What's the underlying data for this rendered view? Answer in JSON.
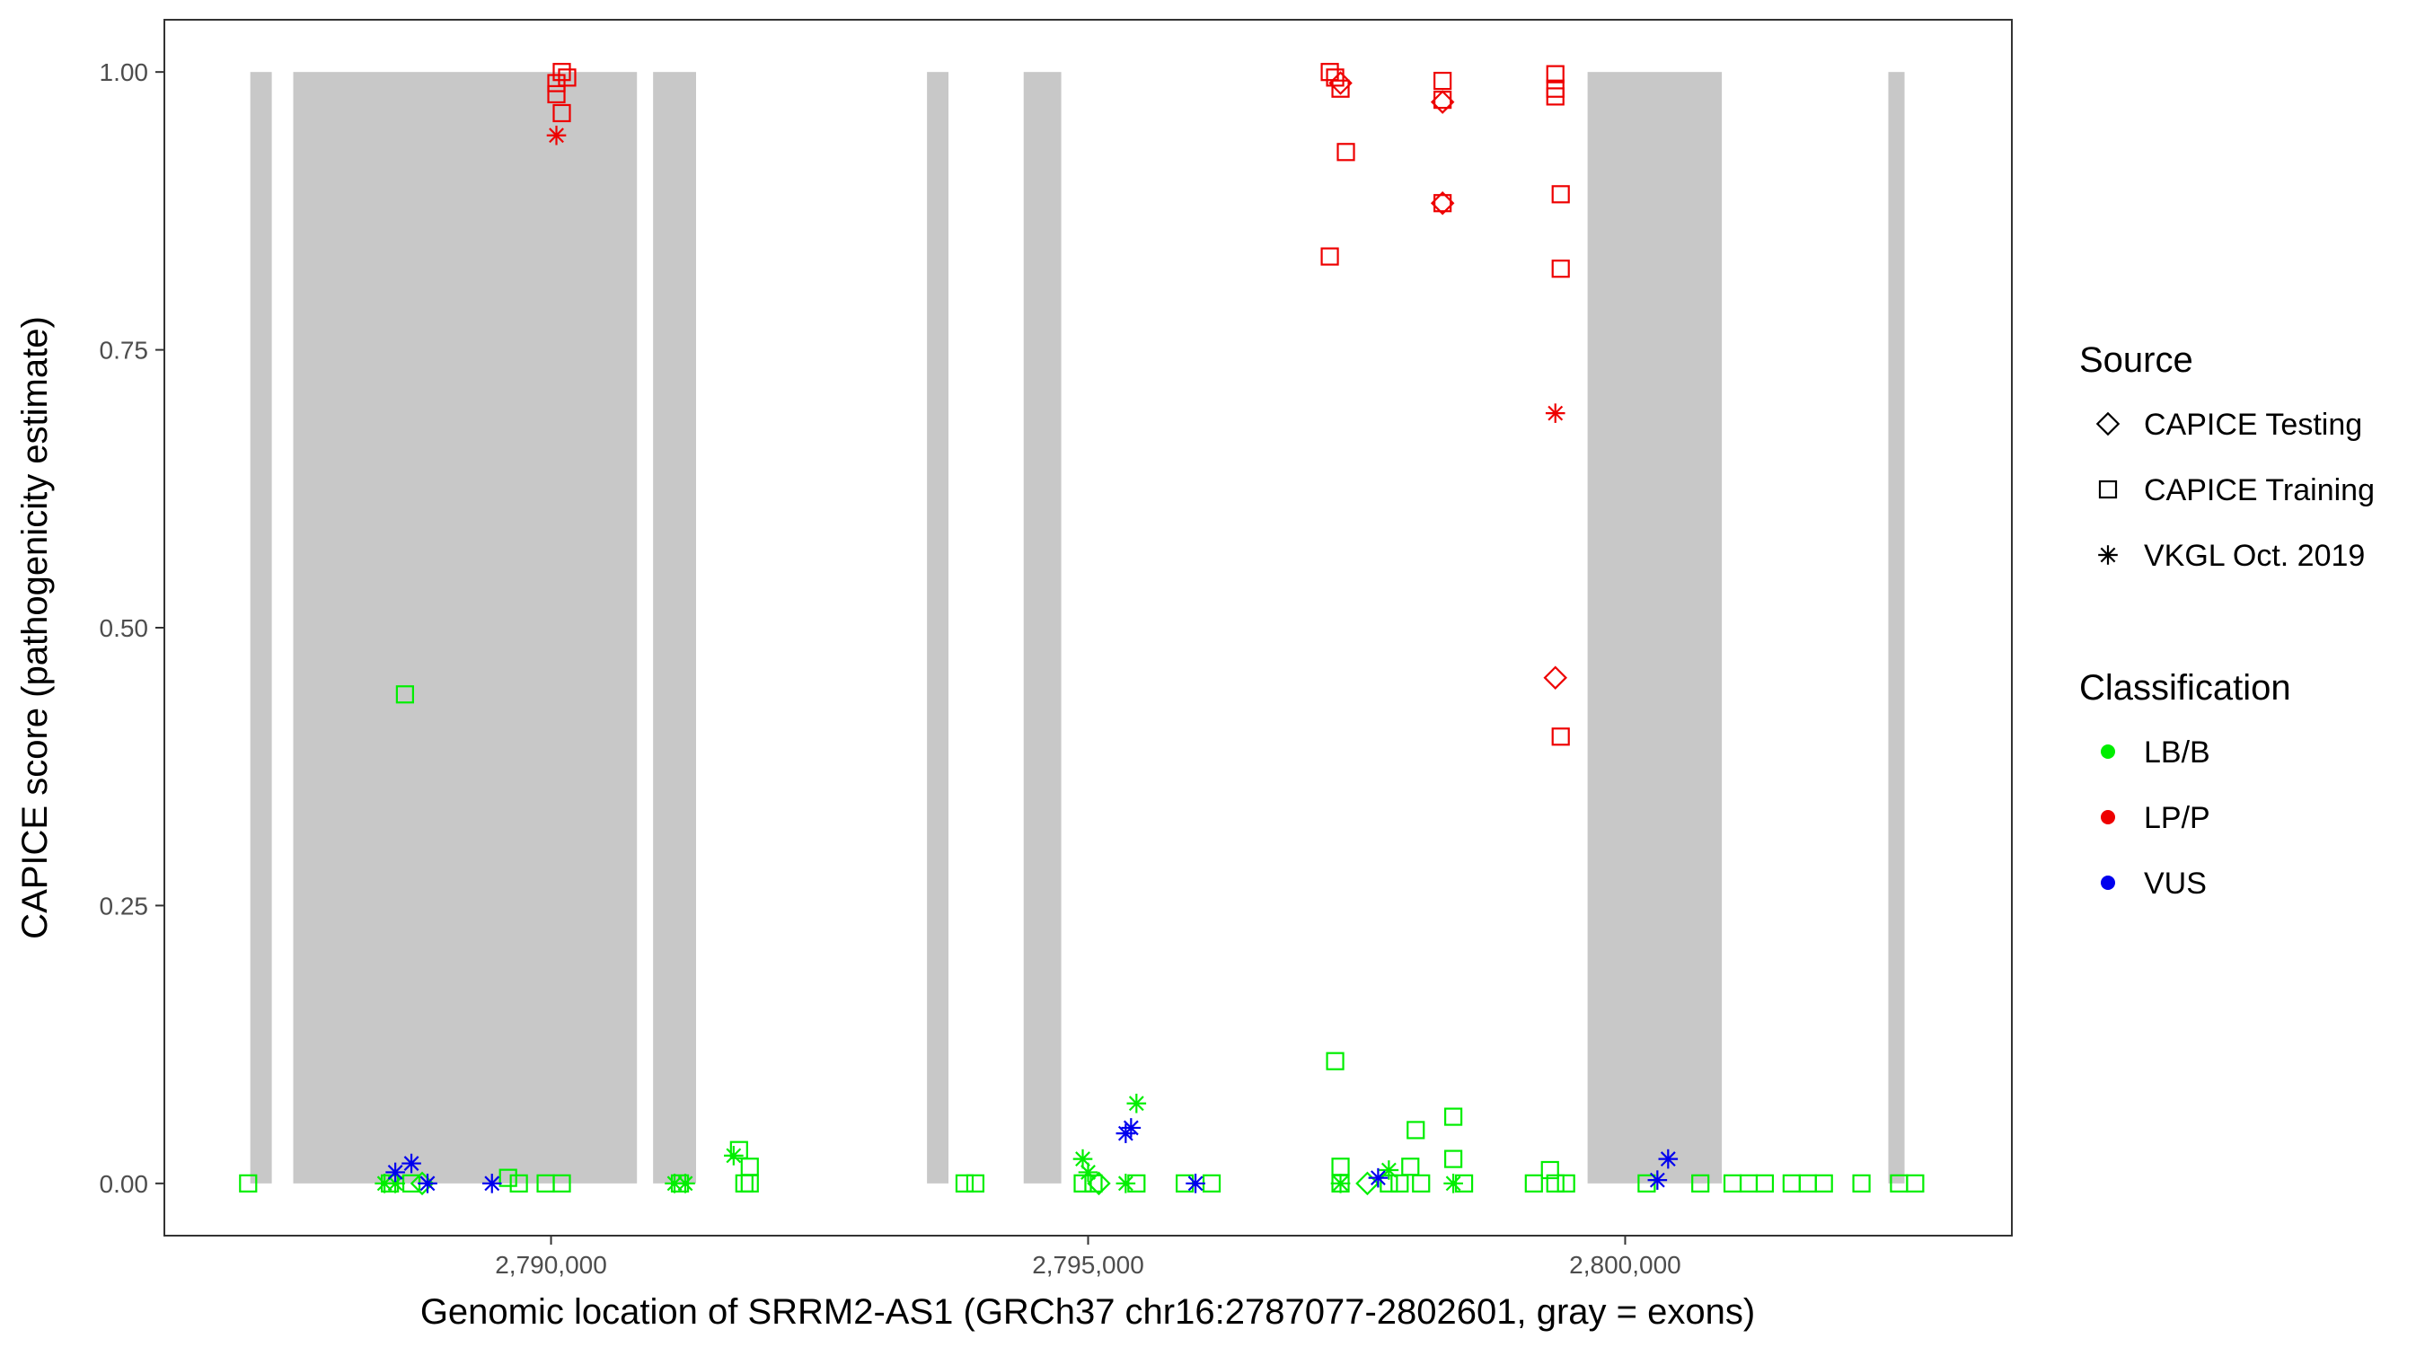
{
  "chart_data": {
    "type": "scatter",
    "xlabel": "Genomic location of SRRM2-AS1 (GRCh37 chr16:2787077-2802601, gray = exons)",
    "ylabel": "CAPICE score (pathogenicity estimate)",
    "xlim": [
      2786400,
      2803600
    ],
    "ylim": [
      -0.047,
      1.047
    ],
    "x_ticks": [
      2790000,
      2795000,
      2800000
    ],
    "x_tick_labels": [
      "2,790,000",
      "2,795,000",
      "2,800,000"
    ],
    "y_ticks": [
      0,
      0.25,
      0.5,
      0.75,
      1.0
    ],
    "y_tick_labels": [
      "0.00",
      "0.25",
      "0.50",
      "0.75",
      "1.00"
    ],
    "grid": false,
    "exons": [
      [
        2787200,
        2787400
      ],
      [
        2787600,
        2790800
      ],
      [
        2790950,
        2791350
      ],
      [
        2793500,
        2793700
      ],
      [
        2794400,
        2794750
      ],
      [
        2799650,
        2800900
      ],
      [
        2802450,
        2802601
      ]
    ],
    "legends": [
      {
        "title": "Source",
        "placement": "right",
        "entries": [
          {
            "label": "CAPICE Testing",
            "shape": "diamond"
          },
          {
            "label": "CAPICE Training",
            "shape": "square"
          },
          {
            "label": "VKGL Oct. 2019",
            "shape": "asterisk"
          }
        ]
      },
      {
        "title": "Classification",
        "placement": "right",
        "entries": [
          {
            "label": "LB/B",
            "color": "#00ee00"
          },
          {
            "label": "LP/P",
            "color": "#ee0000"
          },
          {
            "label": "VUS",
            "color": "#0000ee"
          }
        ]
      }
    ],
    "colors": {
      "LB/B": "#00ee00",
      "LP/P": "#ee0000",
      "VUS": "#0000ee",
      "exon": "#c8c8c8"
    },
    "series": [
      {
        "name": "CAPICE Training",
        "shape": "square",
        "points": [
          [
            2787180,
            0.0,
            "LB/B"
          ],
          [
            2788640,
            0.44,
            "LB/B"
          ],
          [
            2788500,
            0.0,
            "LB/B"
          ],
          [
            2788700,
            0.0,
            "LB/B"
          ],
          [
            2789600,
            0.005,
            "LB/B"
          ],
          [
            2789700,
            0.0,
            "LB/B"
          ],
          [
            2789950,
            0.0,
            "LB/B"
          ],
          [
            2790100,
            0.0,
            "LB/B"
          ],
          [
            2791200,
            0.0,
            "LB/B"
          ],
          [
            2791750,
            0.03,
            "LB/B"
          ],
          [
            2791850,
            0.015,
            "LB/B"
          ],
          [
            2791800,
            0.0,
            "LB/B"
          ],
          [
            2791850,
            0.0,
            "LB/B"
          ],
          [
            2793850,
            0.0,
            "LB/B"
          ],
          [
            2793950,
            0.0,
            "LB/B"
          ],
          [
            2794950,
            0.0,
            "LB/B"
          ],
          [
            2795050,
            0.0,
            "LB/B"
          ],
          [
            2795450,
            0.0,
            "LB/B"
          ],
          [
            2795900,
            0.0,
            "LB/B"
          ],
          [
            2796150,
            0.0,
            "LB/B"
          ],
          [
            2797300,
            0.11,
            "LB/B"
          ],
          [
            2797350,
            0.015,
            "LB/B"
          ],
          [
            2797350,
            0.0,
            "LB/B"
          ],
          [
            2797800,
            0.0,
            "LB/B"
          ],
          [
            2797900,
            0.0,
            "LB/B"
          ],
          [
            2798050,
            0.048,
            "LB/B"
          ],
          [
            2798000,
            0.015,
            "LB/B"
          ],
          [
            2798100,
            0.0,
            "LB/B"
          ],
          [
            2798400,
            0.06,
            "LB/B"
          ],
          [
            2798400,
            0.022,
            "LB/B"
          ],
          [
            2798500,
            0.0,
            "LB/B"
          ],
          [
            2799150,
            0.0,
            "LB/B"
          ],
          [
            2799300,
            0.012,
            "LB/B"
          ],
          [
            2799350,
            0.0,
            "LB/B"
          ],
          [
            2799450,
            0.0,
            "LB/B"
          ],
          [
            2800200,
            0.0,
            "LB/B"
          ],
          [
            2800700,
            0.0,
            "LB/B"
          ],
          [
            2801000,
            0.0,
            "LB/B"
          ],
          [
            2801150,
            0.0,
            "LB/B"
          ],
          [
            2801300,
            0.0,
            "LB/B"
          ],
          [
            2801550,
            0.0,
            "LB/B"
          ],
          [
            2801700,
            0.0,
            "LB/B"
          ],
          [
            2801850,
            0.0,
            "LB/B"
          ],
          [
            2802200,
            0.0,
            "LB/B"
          ],
          [
            2802550,
            0.0,
            "LB/B"
          ],
          [
            2802700,
            0.0,
            "LB/B"
          ],
          [
            2790050,
            0.99,
            "LP/P"
          ],
          [
            2790100,
            1.0,
            "LP/P"
          ],
          [
            2790150,
            0.995,
            "LP/P"
          ],
          [
            2790050,
            0.98,
            "LP/P"
          ],
          [
            2790100,
            0.963,
            "LP/P"
          ],
          [
            2797250,
            1.0,
            "LP/P"
          ],
          [
            2797300,
            0.995,
            "LP/P"
          ],
          [
            2797350,
            0.985,
            "LP/P"
          ],
          [
            2797250,
            0.834,
            "LP/P"
          ],
          [
            2797400,
            0.928,
            "LP/P"
          ],
          [
            2798300,
            0.992,
            "LP/P"
          ],
          [
            2798300,
            0.975,
            "LP/P"
          ],
          [
            2798300,
            0.882,
            "LP/P"
          ],
          [
            2799350,
            0.998,
            "LP/P"
          ],
          [
            2799350,
            0.985,
            "LP/P"
          ],
          [
            2799350,
            0.978,
            "LP/P"
          ],
          [
            2799400,
            0.89,
            "LP/P"
          ],
          [
            2799400,
            0.823,
            "LP/P"
          ],
          [
            2799400,
            0.402,
            "LP/P"
          ]
        ]
      },
      {
        "name": "CAPICE Testing",
        "shape": "diamond",
        "points": [
          [
            2797350,
            0.99,
            "LP/P"
          ],
          [
            2798300,
            0.973,
            "LP/P"
          ],
          [
            2798300,
            0.882,
            "LP/P"
          ],
          [
            2799350,
            0.455,
            "LP/P"
          ],
          [
            2788800,
            0.0,
            "LB/B"
          ],
          [
            2795100,
            0.0,
            "LB/B"
          ],
          [
            2797600,
            0.0,
            "LB/B"
          ]
        ]
      },
      {
        "name": "VKGL Oct. 2019",
        "shape": "asterisk",
        "points": [
          [
            2788450,
            0.0,
            "LB/B"
          ],
          [
            2788550,
            0.0,
            "LB/B"
          ],
          [
            2791150,
            0.0,
            "LB/B"
          ],
          [
            2791250,
            0.0,
            "LB/B"
          ],
          [
            2791700,
            0.025,
            "LB/B"
          ],
          [
            2794950,
            0.022,
            "LB/B"
          ],
          [
            2795000,
            0.01,
            "LB/B"
          ],
          [
            2795450,
            0.072,
            "LB/B"
          ],
          [
            2795350,
            0.0,
            "LB/B"
          ],
          [
            2797350,
            0.0,
            "LB/B"
          ],
          [
            2797800,
            0.012,
            "LB/B"
          ],
          [
            2798400,
            0.0,
            "LB/B"
          ],
          [
            2790050,
            0.943,
            "LP/P"
          ],
          [
            2799350,
            0.693,
            "LP/P"
          ],
          [
            2788550,
            0.01,
            "VUS"
          ],
          [
            2788700,
            0.018,
            "VUS"
          ],
          [
            2788850,
            0.0,
            "VUS"
          ],
          [
            2789450,
            0.0,
            "VUS"
          ],
          [
            2795400,
            0.05,
            "VUS"
          ],
          [
            2795350,
            0.045,
            "VUS"
          ],
          [
            2796000,
            0.0,
            "VUS"
          ],
          [
            2797700,
            0.005,
            "VUS"
          ],
          [
            2800300,
            0.003,
            "VUS"
          ],
          [
            2800400,
            0.022,
            "VUS"
          ]
        ]
      }
    ]
  }
}
